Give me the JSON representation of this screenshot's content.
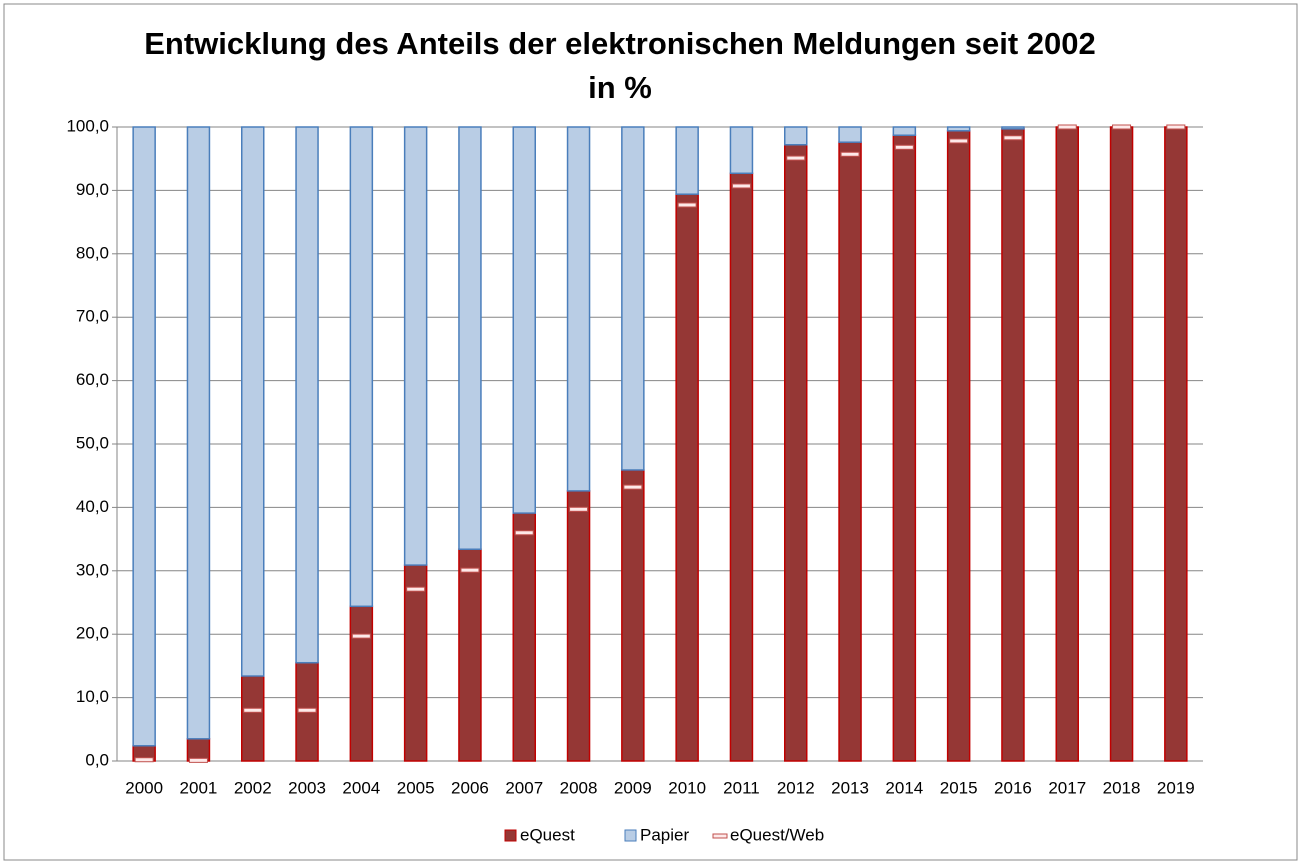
{
  "chart_data": {
    "type": "bar",
    "stacked": true,
    "title": "Entwicklung des Anteils der elektronischen Meldungen seit 2002 in %",
    "categories": [
      "2000",
      "2001",
      "2002",
      "2003",
      "2004",
      "2005",
      "2006",
      "2007",
      "2008",
      "2009",
      "2010",
      "2011",
      "2012",
      "2013",
      "2014",
      "2015",
      "2016",
      "2017",
      "2018",
      "2019"
    ],
    "series": [
      {
        "name": "eQuest",
        "color": "#953735",
        "edge": "#c00000",
        "values": [
          2.4,
          3.5,
          13.4,
          15.5,
          24.4,
          30.9,
          33.4,
          39.1,
          42.6,
          45.9,
          89.4,
          92.7,
          97.2,
          97.6,
          98.7,
          99.4,
          99.7,
          100,
          100,
          100
        ]
      },
      {
        "name": "Papier",
        "color": "#b9cde5",
        "edge": "#4a7ebb",
        "values": [
          97.6,
          96.5,
          86.6,
          84.5,
          75.6,
          69.1,
          66.6,
          60.9,
          57.4,
          54.1,
          10.6,
          7.3,
          2.8,
          2.4,
          1.3,
          0.6,
          0.3,
          0,
          0,
          0
        ]
      },
      {
        "name": "eQuest/Web",
        "type": "marker",
        "color": "#c0504d",
        "values": [
          0.2,
          0.1,
          8.0,
          8.0,
          19.7,
          27.1,
          30.1,
          36.0,
          39.7,
          43.2,
          87.7,
          90.7,
          95.1,
          95.7,
          96.8,
          97.8,
          98.3,
          100,
          100,
          100
        ]
      }
    ],
    "ylim": [
      0,
      100
    ],
    "yticks": [
      {
        "value": 0,
        "label": "0,0"
      },
      {
        "value": 10,
        "label": "10,0"
      },
      {
        "value": 20,
        "label": "20,0"
      },
      {
        "value": 30,
        "label": "30,0"
      },
      {
        "value": 40,
        "label": "40,0"
      },
      {
        "value": 50,
        "label": "50,0"
      },
      {
        "value": 60,
        "label": "60,0"
      },
      {
        "value": 70,
        "label": "70,0"
      },
      {
        "value": 80,
        "label": "80,0"
      },
      {
        "value": 90,
        "label": "90,0"
      },
      {
        "value": 100,
        "label": "100,0"
      }
    ],
    "grid": true,
    "legend": "bottom"
  }
}
